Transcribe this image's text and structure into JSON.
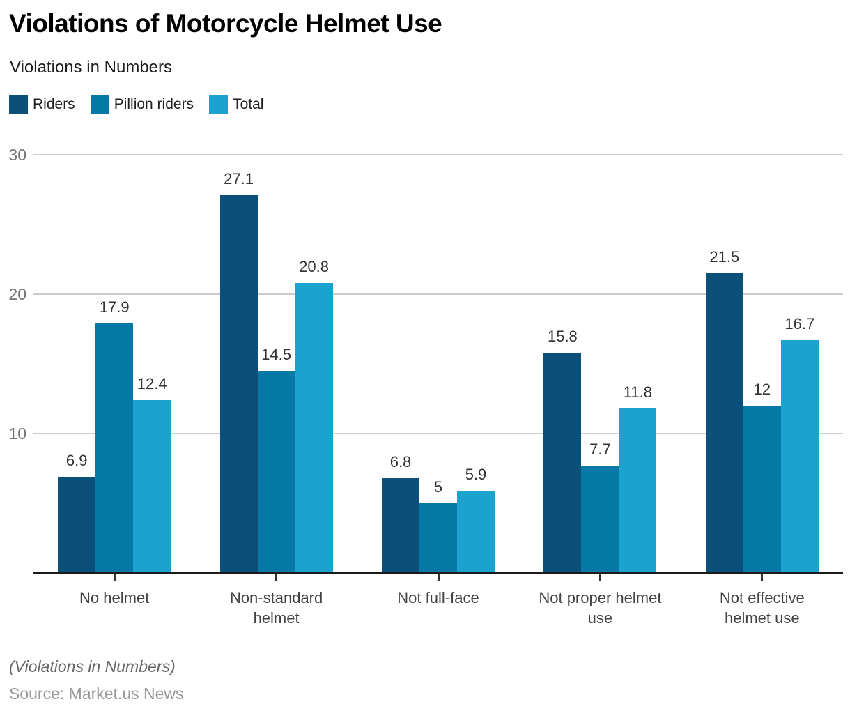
{
  "header": {
    "title": "Violations of Motorcycle Helmet Use",
    "subtitle": "Violations in Numbers"
  },
  "legend": [
    {
      "label": "Riders",
      "color": "#0b5078"
    },
    {
      "label": "Pillion riders",
      "color": "#0679a6"
    },
    {
      "label": "Total",
      "color": "#1ba2cf"
    }
  ],
  "chart_data": {
    "type": "bar",
    "title": "Violations of Motorcycle Helmet Use",
    "subtitle": "Violations in Numbers",
    "categories": [
      "No helmet",
      "Non-standard helmet",
      "Not full-face",
      "Not proper helmet use",
      "Not effective helmet use"
    ],
    "series": [
      {
        "name": "Riders",
        "color": "#0b5078",
        "values": [
          6.9,
          27.1,
          6.8,
          15.8,
          21.5
        ]
      },
      {
        "name": "Pillion riders",
        "color": "#0679a6",
        "values": [
          17.9,
          14.5,
          5,
          7.7,
          12
        ]
      },
      {
        "name": "Total",
        "color": "#1ba2cf",
        "values": [
          12.4,
          20.8,
          5.9,
          11.8,
          16.7
        ]
      }
    ],
    "ylim": [
      0,
      30
    ],
    "yticks": [
      10,
      20,
      30
    ],
    "grid": true,
    "legend_position": "top-left",
    "value_labels": true
  },
  "colors": {
    "grid": "#cccccc",
    "axis": "#1a1a1a",
    "ytick_text": "#757575",
    "xtick_text": "#424242",
    "value_label_text": "#333333"
  },
  "footer": {
    "note": "(Violations in Numbers)",
    "source": "Source: Market.us News"
  }
}
